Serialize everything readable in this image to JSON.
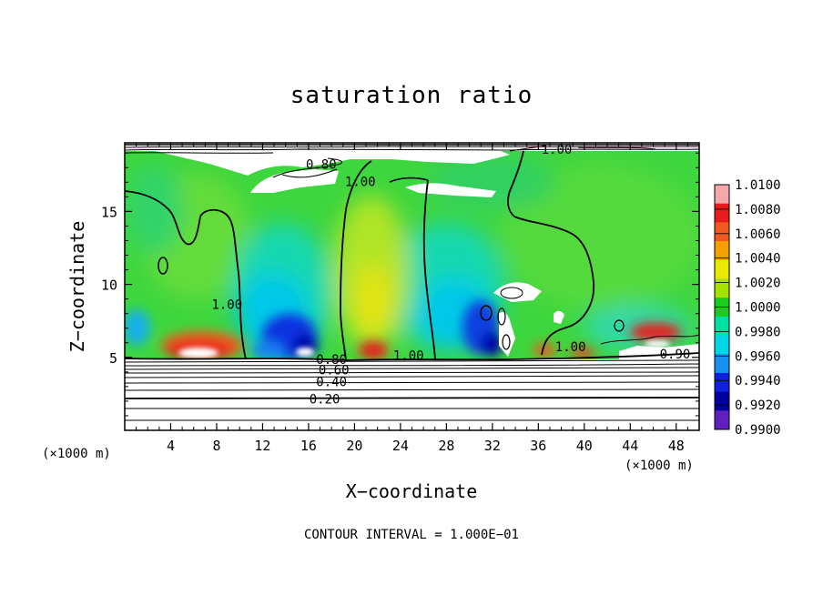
{
  "chart_data": {
    "type": "heatmap",
    "title": "saturation ratio",
    "xlabel": "X−coordinate",
    "ylabel": "Z−coordinate",
    "x_unit": "(×1000 m)",
    "z_unit": "(×1000 m)",
    "xlim": [
      0,
      50
    ],
    "ylim": [
      0,
      19.7
    ],
    "x_ticks": [
      4,
      8,
      12,
      16,
      20,
      24,
      28,
      32,
      36,
      40,
      44,
      48
    ],
    "y_ticks": [
      5,
      10,
      15
    ],
    "footer": "CONTOUR INTERVAL = 1.000E−01",
    "colorbar": {
      "labels": [
        "1.0100",
        "1.0080",
        "1.0060",
        "1.0040",
        "1.0020",
        "1.0000",
        "0.9980",
        "0.9960",
        "0.9940",
        "0.9920",
        "0.9900"
      ],
      "colors": [
        "#f4a8a8",
        "#e81c1c",
        "#f05a1e",
        "#f5a000",
        "#e8e800",
        "#a8e000",
        "#1ccc1c",
        "#00e0a0",
        "#00d8e8",
        "#1890f0",
        "#1020e0",
        "#0000a0",
        "#6020c0"
      ]
    },
    "contour_labels": [
      {
        "text": "0.80",
        "x": 17.1,
        "z": 18.0
      },
      {
        "text": "1.00",
        "x": 20.5,
        "z": 16.8
      },
      {
        "text": "1.00",
        "x": 37.6,
        "z": 19.0
      },
      {
        "text": "1.00",
        "x": 8.9,
        "z": 8.4
      },
      {
        "text": "1.00",
        "x": 24.7,
        "z": 4.9
      },
      {
        "text": "1.00",
        "x": 38.8,
        "z": 5.5
      },
      {
        "text": "0.90",
        "x": 47.9,
        "z": 5.0
      },
      {
        "text": "0.80",
        "x": 18.0,
        "z": 4.6
      },
      {
        "text": "0.60",
        "x": 18.2,
        "z": 3.9
      },
      {
        "text": "0.40",
        "x": 18.0,
        "z": 3.1
      },
      {
        "text": "0.20",
        "x": 17.4,
        "z": 1.9
      }
    ]
  }
}
